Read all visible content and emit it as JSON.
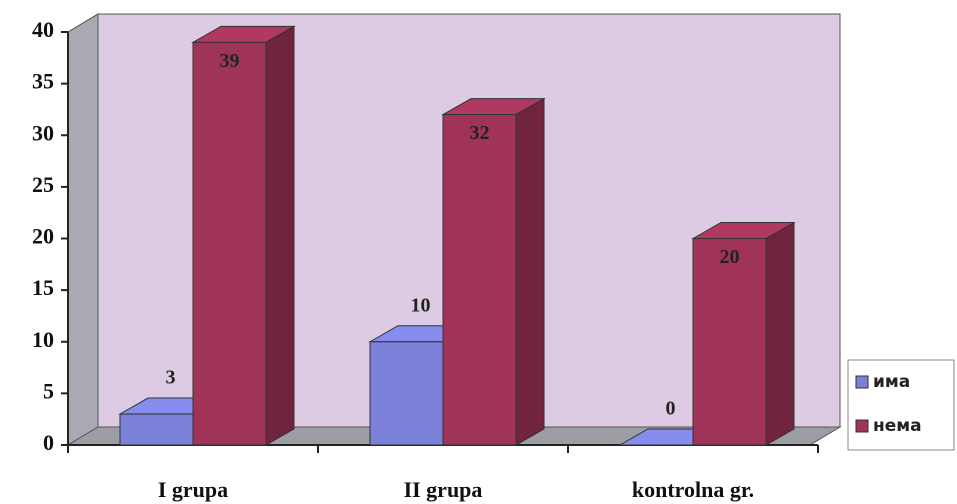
{
  "chart_data": {
    "type": "bar",
    "categories": [
      "I grupa",
      "II grupa",
      "kontrolna gr."
    ],
    "series": [
      {
        "name": "има",
        "color": "#7b80d8",
        "values": [
          3,
          10,
          0
        ]
      },
      {
        "name": "нема",
        "color": "#a03458",
        "values": [
          39,
          32,
          20
        ]
      }
    ],
    "ylim": [
      0,
      40
    ],
    "yticks": [
      0,
      5,
      10,
      15,
      20,
      25,
      30,
      35,
      40
    ],
    "legend": "right",
    "data_labels": true
  }
}
